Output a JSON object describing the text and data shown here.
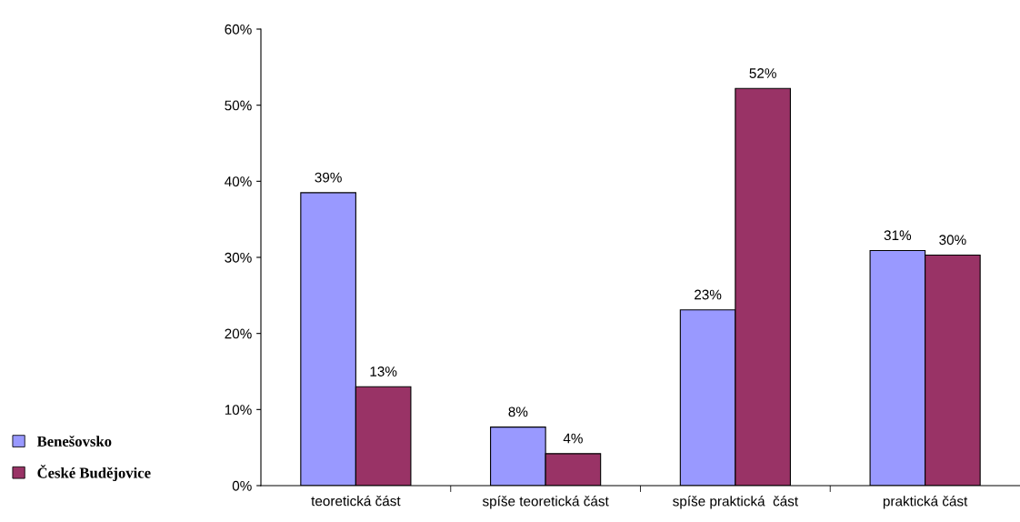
{
  "chart_data": {
    "type": "bar",
    "categories": [
      "teoretická část",
      "spíše teoretická část",
      "spíše praktická  část",
      "praktická část"
    ],
    "series": [
      {
        "name": "Benešovsko",
        "color": "#9999ff",
        "values": [
          38.5,
          7.7,
          23.1,
          30.9
        ],
        "value_labels": [
          "39%",
          "8%",
          "23%",
          "31%"
        ]
      },
      {
        "name": "České Budějovice",
        "color": "#993366",
        "values": [
          13.0,
          4.2,
          52.2,
          30.3
        ],
        "value_labels": [
          "13%",
          "4%",
          "52%",
          "30%"
        ]
      }
    ],
    "ylim": [
      0,
      60
    ],
    "yticks": [
      {
        "value": 0,
        "label": "0%"
      },
      {
        "value": 10,
        "label": "10%"
      },
      {
        "value": 20,
        "label": "20%"
      },
      {
        "value": 30,
        "label": "30%"
      },
      {
        "value": 40,
        "label": "40%"
      },
      {
        "value": 50,
        "label": "50%"
      },
      {
        "value": 60,
        "label": "60%"
      }
    ],
    "grid": false,
    "legend": "bottom left"
  }
}
